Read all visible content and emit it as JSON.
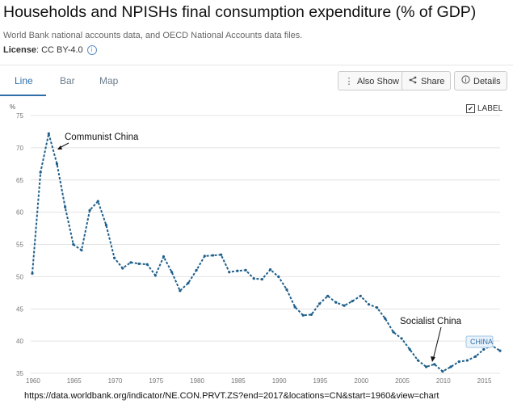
{
  "header": {
    "title": "Households and NPISHs final consumption expenditure (% of GDP)",
    "source": "World Bank national accounts data, and OECD National Accounts data files.",
    "license_label": "License",
    "license_value": ": CC BY-4.0"
  },
  "tabs": [
    {
      "label": "Line",
      "active": true
    },
    {
      "label": "Bar",
      "active": false
    },
    {
      "label": "Map",
      "active": false
    }
  ],
  "toolbar": {
    "also_show_label": "Also Show",
    "share_label": "Share",
    "details_label": "Details"
  },
  "label_toggle": {
    "label": "LABEL",
    "checked": true
  },
  "accent_color": "#2f6ea8",
  "annotations": {
    "peak": "Communist China",
    "trough": "Socialist China"
  },
  "footer_url": "https://data.worldbank.org/indicator/NE.CON.PRVT.ZS?end=2017&locations=CN&start=1960&view=chart",
  "chart_data": {
    "type": "line",
    "ylabel": "%",
    "ylim": [
      35,
      75
    ],
    "yticks": [
      35,
      40,
      45,
      50,
      55,
      60,
      65,
      70,
      75
    ],
    "xlim": [
      1960,
      2017
    ],
    "xticks": [
      1960,
      1965,
      1970,
      1975,
      1980,
      1985,
      1990,
      1995,
      2000,
      2005,
      2010,
      2015
    ],
    "grid": true,
    "series": [
      {
        "name": "CHINA",
        "color": "#1f5f8b",
        "x": [
          1960,
          1961,
          1962,
          1963,
          1964,
          1965,
          1966,
          1967,
          1968,
          1969,
          1970,
          1971,
          1972,
          1973,
          1974,
          1975,
          1976,
          1977,
          1978,
          1979,
          1980,
          1981,
          1982,
          1983,
          1984,
          1985,
          1986,
          1987,
          1988,
          1989,
          1990,
          1991,
          1992,
          1993,
          1994,
          1995,
          1996,
          1997,
          1998,
          1999,
          2000,
          2001,
          2002,
          2003,
          2004,
          2005,
          2006,
          2007,
          2008,
          2009,
          2010,
          2011,
          2012,
          2013,
          2014,
          2015,
          2016,
          2017
        ],
        "values": [
          50.5,
          66.2,
          72.2,
          67.5,
          60.8,
          55.0,
          54.1,
          60.3,
          61.7,
          58.0,
          52.9,
          51.3,
          52.2,
          52.0,
          51.9,
          50.2,
          53.1,
          50.7,
          47.8,
          49.0,
          51.0,
          53.2,
          53.3,
          53.4,
          50.7,
          50.9,
          51.0,
          49.7,
          49.6,
          51.1,
          50.0,
          48.0,
          45.3,
          44.0,
          44.1,
          45.8,
          47.0,
          46.0,
          45.5,
          46.2,
          47.0,
          45.7,
          45.2,
          43.5,
          41.4,
          40.4,
          38.7,
          37.0,
          36.0,
          36.4,
          35.3,
          36.0,
          36.8,
          37.0,
          37.6,
          38.7,
          39.3,
          38.5
        ]
      }
    ]
  }
}
